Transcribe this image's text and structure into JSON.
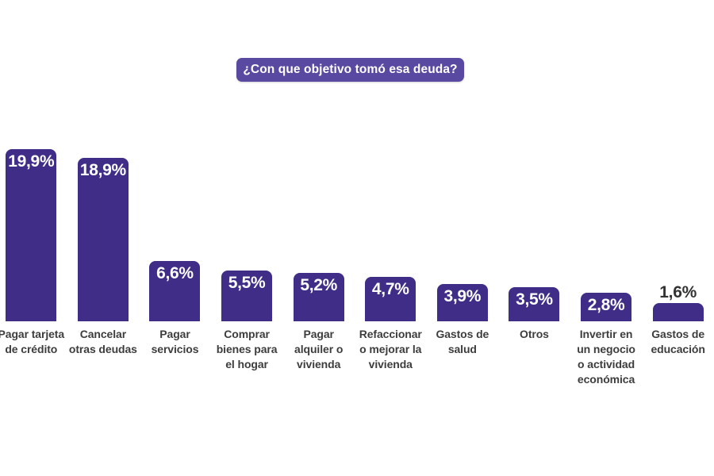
{
  "title": {
    "text": "¿Con que objetivo tomó esa deuda?",
    "bg_color": "#5a49a0",
    "text_color": "#ffffff"
  },
  "chart_data": {
    "type": "bar",
    "title": "¿Con que objetivo tomó esa deuda?",
    "categories": [
      "Pagar tarjeta de crédito",
      "Cancelar otras deudas",
      "Pagar servicios",
      "Comprar bienes para el hogar",
      "Pagar alquiler o vivienda",
      "Refaccionar o mejorar la vivienda",
      "Gastos de salud",
      "Otros",
      "Invertir en un negocio o actividad económica",
      "Gastos de educación"
    ],
    "category_label_lines": [
      [
        "Pagar tarjeta",
        "de crédito"
      ],
      [
        "Cancelar",
        "otras deudas"
      ],
      [
        "Pagar",
        "servicios"
      ],
      [
        "Comprar",
        "bienes para",
        "el hogar"
      ],
      [
        "Pagar",
        "alquiler o",
        "vivienda"
      ],
      [
        "Refaccionar",
        "o mejorar la",
        "vivienda"
      ],
      [
        "Gastos de",
        "salud"
      ],
      [
        "Otros"
      ],
      [
        "Invertir en",
        "un negocio",
        "o actividad",
        "económica"
      ],
      [
        "Gastos de",
        "educación"
      ]
    ],
    "values": [
      19.9,
      18.9,
      6.6,
      5.5,
      5.2,
      4.7,
      3.9,
      3.5,
      2.8,
      1.6
    ],
    "value_labels": [
      "19,9%",
      "18,9%",
      "6,6%",
      "5,5%",
      "5,2%",
      "4,7%",
      "3,9%",
      "3,5%",
      "2,8%",
      "1,6%"
    ],
    "value_label_positions": [
      "inside",
      "inside",
      "inside",
      "inside",
      "inside",
      "inside",
      "inside",
      "inside",
      "inside",
      "above"
    ],
    "xlabel": "",
    "ylabel": "",
    "unit": "%",
    "decimal_separator": ",",
    "ylim": [
      0,
      20
    ],
    "gridlines": false,
    "legend": "none",
    "axis_lines": "none",
    "bar_color": "#3f2d88",
    "value_label_color_inside": "#ffffff",
    "value_label_color_above": "#333333",
    "category_label_color": "#3d3d3d",
    "background_color": "#ffffff"
  }
}
